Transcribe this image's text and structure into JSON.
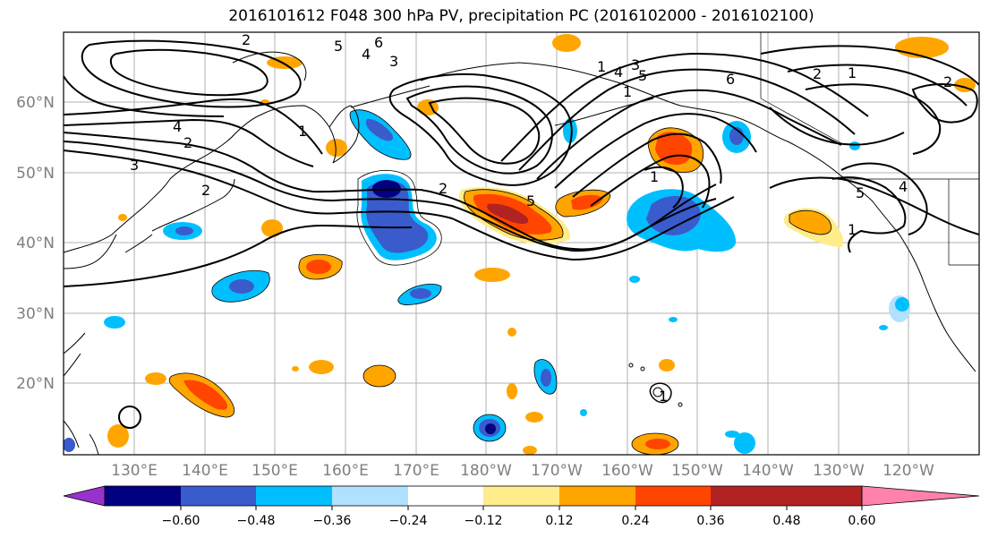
{
  "title": "2016101612 F048 300 hPa PV, precipitation PC (2016102000 - 2016102100)",
  "latitude_labels": [
    "60°N",
    "50°N",
    "40°N",
    "30°N",
    "20°N"
  ],
  "longitude_labels": [
    "130°E",
    "140°E",
    "150°E",
    "160°E",
    "170°E",
    "180°W",
    "170°W",
    "160°W",
    "150°W",
    "140°W",
    "130°W",
    "120°W"
  ],
  "colorbar": {
    "tick_labels": [
      "−0.60",
      "−0.48",
      "−0.36",
      "−0.24",
      "−0.12",
      "0.12",
      "0.24",
      "0.36",
      "0.48",
      "0.60"
    ],
    "colors": [
      "#9932cc",
      "#000080",
      "#3a5bcc",
      "#00bfff",
      "#b0e2ff",
      "#ffffff",
      "#ffec8b",
      "#ffa500",
      "#ff4500",
      "#b22222",
      "#ff82ab"
    ]
  },
  "pv_contour_labels": [
    "2",
    "5",
    "6",
    "4",
    "3",
    "1",
    "4",
    "2",
    "3",
    "2",
    "5",
    "2",
    "1",
    "4",
    "3",
    "5",
    "6",
    "2",
    "1",
    "2",
    "1",
    "4",
    "1",
    "5",
    "1",
    "1"
  ]
}
